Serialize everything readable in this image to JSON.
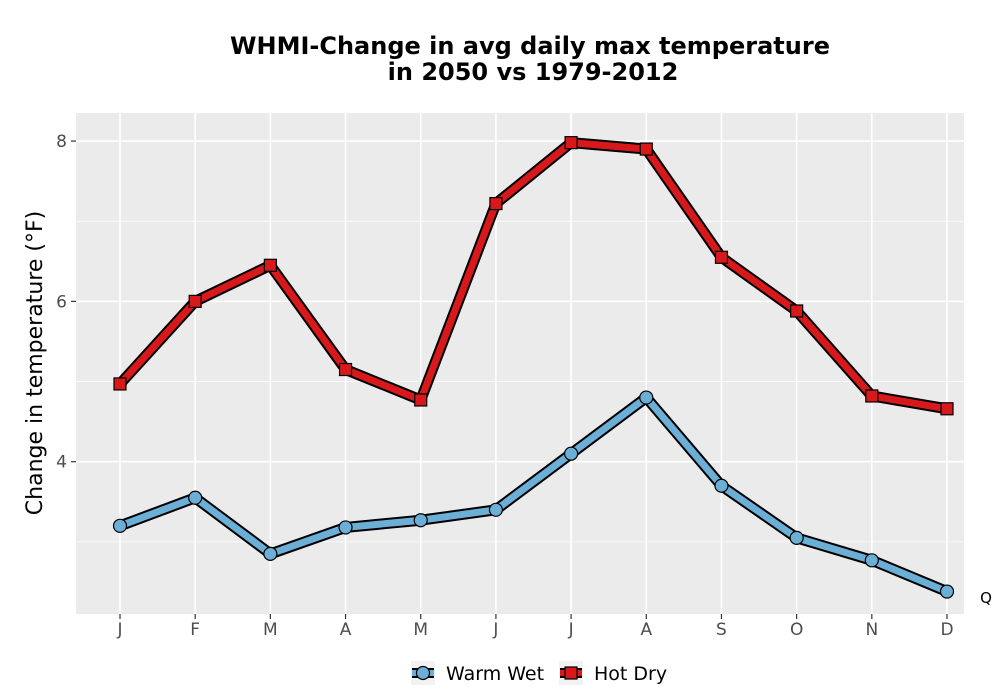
{
  "chart_data": {
    "type": "line",
    "title_lines": [
      "WHMI-Change in avg daily max temperature",
      "in 2050 vs 1979-2012"
    ],
    "xlabel": "",
    "ylabel": "Change in temperature (°F)",
    "categories": [
      "J",
      "F",
      "M",
      "A",
      "M",
      "J",
      "J",
      "A",
      "S",
      "O",
      "N",
      "D"
    ],
    "ylim": [
      2.1,
      8.35
    ],
    "yticks": [
      4,
      6,
      8
    ],
    "y_minor_gridlines": [
      3,
      5,
      7
    ],
    "grid": true,
    "legend_position": "bottom",
    "corner_note": "Q",
    "series": [
      {
        "name": "Warm Wet",
        "marker": "circle",
        "color": "#6baed6",
        "values": [
          3.2,
          3.55,
          2.85,
          3.18,
          3.27,
          3.4,
          4.1,
          4.8,
          3.7,
          3.05,
          2.77,
          2.38
        ]
      },
      {
        "name": "Hot Dry",
        "marker": "square",
        "color": "#d7191c",
        "values": [
          4.97,
          6.0,
          6.45,
          5.15,
          4.77,
          7.22,
          7.98,
          7.9,
          6.55,
          5.88,
          4.82,
          4.66
        ]
      }
    ]
  }
}
